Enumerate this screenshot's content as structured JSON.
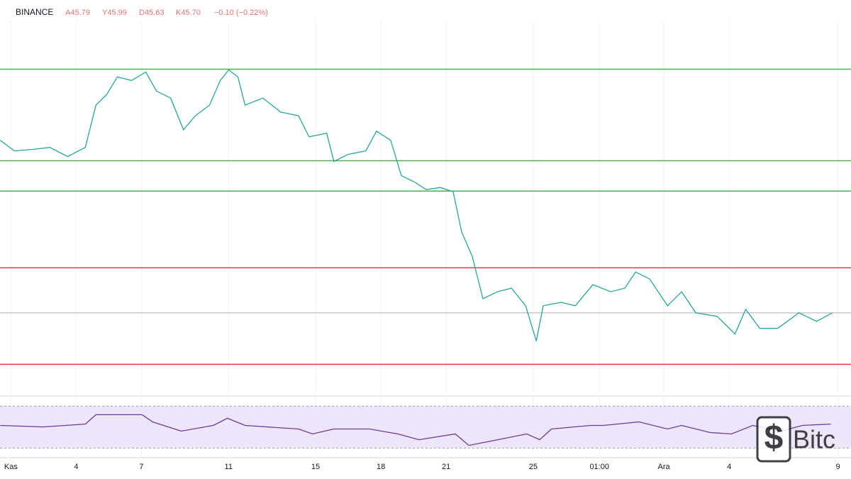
{
  "chart_data": [
    {
      "type": "line",
      "exchange": "BINANCE",
      "ohlc": [
        "A45.79",
        "Y45.99",
        "D45.63",
        "K45.70"
      ],
      "change": "−0.10 (−0.22%)",
      "xlim": [
        0.5,
        39.6
      ],
      "ylim": [
        40,
        66.2
      ],
      "grid": true,
      "xticks": [
        {
          "value": 1,
          "label": "Kas"
        },
        4,
        7,
        11,
        15,
        18,
        21,
        25,
        {
          "value": 28.04,
          "label": "01:00"
        },
        {
          "value": 31,
          "label": "Ara"
        },
        {
          "value": 34,
          "label": "4"
        },
        {
          "value": 39,
          "label": "9"
        }
      ],
      "levels": [
        {
          "value": 63,
          "color": "#4caf50"
        },
        {
          "value": 56.5,
          "color": "#4caf50"
        },
        {
          "value": 54.35,
          "color": "#4caf50"
        },
        {
          "value": 48.9,
          "color": "#e53935"
        },
        {
          "value": 45.7,
          "color": "#c8c8c8"
        },
        {
          "value": 42.05,
          "color": "#e53935"
        }
      ],
      "series": [
        {
          "color": "#26a69a",
          "x": [
            0.51,
            1.16,
            1.98,
            2.79,
            3.61,
            4.42,
            4.91,
            5.4,
            5.89,
            6.54,
            7.2,
            7.69,
            8.34,
            8.93,
            9.48,
            10.13,
            10.62,
            11.01,
            11.43,
            11.76,
            12.58,
            13.4,
            14.21,
            14.7,
            15.51,
            15.84,
            16.49,
            17.31,
            17.8,
            18.45,
            18.94,
            19.59,
            20.08,
            20.73,
            21.32,
            21.71,
            22.2,
            22.69,
            23.35,
            24.0,
            24.65,
            25.14,
            25.46,
            26.28,
            26.93,
            27.74,
            28.56,
            29.21,
            29.7,
            30.35,
            31.17,
            31.82,
            32.47,
            33.45,
            34.27,
            34.76,
            35.41,
            36.23,
            37.21,
            38.02,
            38.74
          ],
          "values": [
            57.95,
            57.2,
            57.3,
            57.45,
            56.8,
            57.45,
            60.45,
            61.2,
            62.45,
            62.2,
            62.8,
            61.45,
            60.95,
            58.7,
            59.7,
            60.45,
            62.2,
            62.95,
            62.45,
            60.45,
            60.95,
            59.95,
            59.7,
            58.2,
            58.45,
            56.45,
            56.95,
            57.2,
            58.6,
            57.95,
            55.45,
            54.95,
            54.45,
            54.6,
            54.3,
            51.45,
            49.7,
            46.7,
            47.2,
            47.45,
            46.2,
            43.7,
            46.2,
            46.45,
            46.2,
            47.7,
            47.2,
            47.45,
            48.6,
            48.1,
            46.2,
            47.2,
            45.7,
            45.45,
            44.2,
            45.95,
            44.6,
            44.6,
            45.7,
            45.1,
            45.7
          ]
        }
      ]
    },
    {
      "type": "line",
      "xlim": [
        0.5,
        39.6
      ],
      "ylim": [
        27,
        73
      ],
      "band": [
        30,
        70
      ],
      "band_color": "#ede5fa",
      "series": [
        {
          "color": "#6a3d9a",
          "x": [
            0.51,
            2.47,
            4.42,
            4.91,
            7.03,
            7.52,
            8.83,
            10.3,
            10.95,
            11.76,
            14.21,
            14.86,
            15.84,
            17.47,
            18.78,
            19.75,
            21.42,
            22.04,
            23.07,
            24.7,
            25.3,
            25.84,
            27.64,
            28.23,
            29.86,
            31.17,
            31.82,
            33.13,
            34.11,
            35.08,
            36.39,
            37.37,
            38.67
          ],
          "values": [
            51.7,
            50.3,
            53,
            61.9,
            61.9,
            55,
            46.3,
            51.7,
            58.5,
            51.7,
            48.3,
            43.6,
            48.3,
            48.3,
            43.6,
            38.1,
            43.6,
            32.7,
            36.8,
            43.6,
            38.1,
            48.3,
            51.7,
            51.7,
            55.1,
            48.3,
            51.7,
            44.9,
            43.6,
            51.7,
            46.3,
            51.7,
            53
          ]
        }
      ]
    }
  ],
  "watermark": "Bitc"
}
